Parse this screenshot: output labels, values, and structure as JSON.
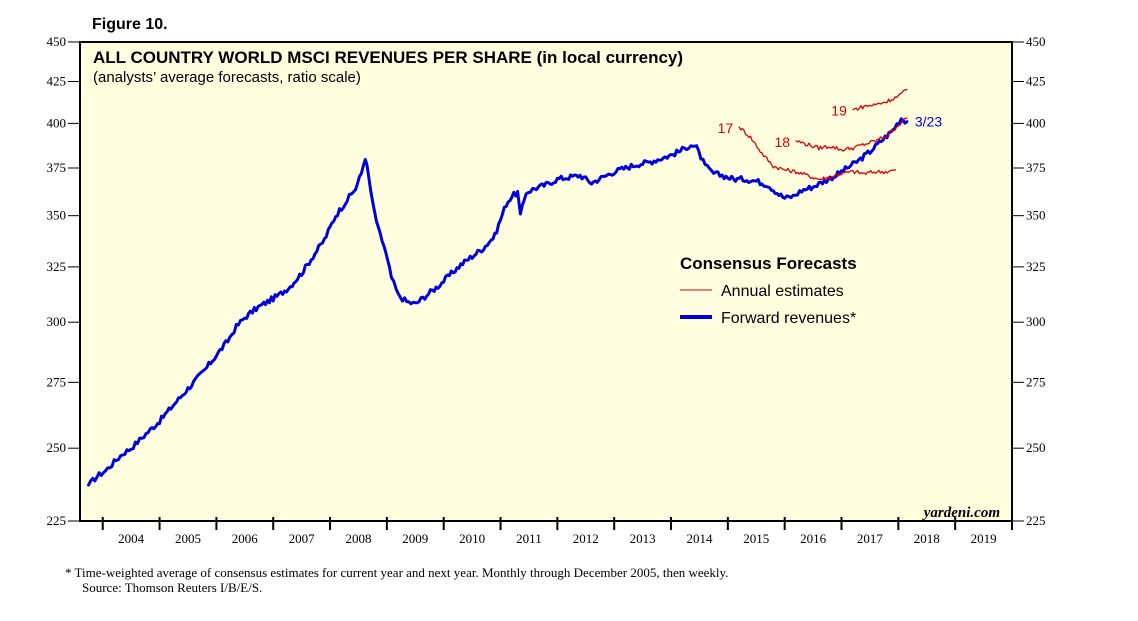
{
  "chart_data": {
    "type": "line",
    "figure_label": "Figure 10.",
    "title": "ALL COUNTRY WORLD MSCI REVENUES PER SHARE (in local currency)",
    "subtitle": "(analysts’ average forecasts, ratio scale)",
    "y_scale": "log",
    "ylim": [
      225,
      450
    ],
    "xlim": [
      2003.6,
      2020.0
    ],
    "y_ticks": [
      225,
      250,
      275,
      300,
      325,
      350,
      375,
      400,
      425,
      450
    ],
    "x_categories": [
      "2004",
      "2005",
      "2006",
      "2007",
      "2008",
      "2009",
      "2010",
      "2011",
      "2012",
      "2013",
      "2014",
      "2015",
      "2016",
      "2017",
      "2018",
      "2019"
    ],
    "legend": {
      "title": "Consensus Forecasts",
      "entries": [
        "Annual estimates",
        "Forward revenues*"
      ]
    },
    "series": [
      {
        "name": "Forward revenues*",
        "color": "#0000dd",
        "points": [
          [
            2003.75,
            237
          ],
          [
            2003.9,
            240
          ],
          [
            2004.05,
            242
          ],
          [
            2004.2,
            245
          ],
          [
            2004.35,
            248
          ],
          [
            2004.5,
            250
          ],
          [
            2004.65,
            253
          ],
          [
            2004.8,
            256
          ],
          [
            2005.0,
            260
          ],
          [
            2005.2,
            265
          ],
          [
            2005.4,
            270
          ],
          [
            2005.6,
            275
          ],
          [
            2005.8,
            280
          ],
          [
            2006.0,
            286
          ],
          [
            2006.2,
            292
          ],
          [
            2006.35,
            298
          ],
          [
            2006.5,
            302
          ],
          [
            2006.7,
            306
          ],
          [
            2006.9,
            309
          ],
          [
            2007.1,
            312
          ],
          [
            2007.3,
            316
          ],
          [
            2007.5,
            322
          ],
          [
            2007.7,
            330
          ],
          [
            2007.9,
            338
          ],
          [
            2008.1,
            350
          ],
          [
            2008.3,
            358
          ],
          [
            2008.45,
            364
          ],
          [
            2008.55,
            372
          ],
          [
            2008.62,
            381
          ],
          [
            2008.68,
            370
          ],
          [
            2008.75,
            356
          ],
          [
            2008.85,
            343
          ],
          [
            2008.95,
            335
          ],
          [
            2009.08,
            320
          ],
          [
            2009.2,
            312
          ],
          [
            2009.35,
            309
          ],
          [
            2009.5,
            308
          ],
          [
            2009.7,
            312
          ],
          [
            2009.9,
            316
          ],
          [
            2010.1,
            321
          ],
          [
            2010.3,
            326
          ],
          [
            2010.5,
            330
          ],
          [
            2010.7,
            334
          ],
          [
            2010.9,
            340
          ],
          [
            2011.0,
            348
          ],
          [
            2011.1,
            356
          ],
          [
            2011.2,
            360
          ],
          [
            2011.3,
            362
          ],
          [
            2011.35,
            350
          ],
          [
            2011.45,
            362
          ],
          [
            2011.6,
            364
          ],
          [
            2011.8,
            366
          ],
          [
            2012.0,
            369
          ],
          [
            2012.2,
            370
          ],
          [
            2012.4,
            371
          ],
          [
            2012.6,
            367
          ],
          [
            2012.8,
            370
          ],
          [
            2013.0,
            373
          ],
          [
            2013.2,
            375
          ],
          [
            2013.4,
            377
          ],
          [
            2013.6,
            378
          ],
          [
            2013.8,
            380
          ],
          [
            2014.0,
            382
          ],
          [
            2014.2,
            385
          ],
          [
            2014.35,
            388
          ],
          [
            2014.45,
            386
          ],
          [
            2014.6,
            376
          ],
          [
            2014.75,
            372
          ],
          [
            2014.9,
            371
          ],
          [
            2015.1,
            369
          ],
          [
            2015.3,
            369
          ],
          [
            2015.5,
            368
          ],
          [
            2015.7,
            366
          ],
          [
            2015.9,
            361
          ],
          [
            2016.0,
            359
          ],
          [
            2016.15,
            360
          ],
          [
            2016.3,
            363
          ],
          [
            2016.5,
            365
          ],
          [
            2016.7,
            368
          ],
          [
            2016.9,
            371
          ],
          [
            2017.1,
            375
          ],
          [
            2017.3,
            379
          ],
          [
            2017.5,
            384
          ],
          [
            2017.7,
            390
          ],
          [
            2017.9,
            396
          ],
          [
            2018.05,
            403
          ],
          [
            2018.15,
            401
          ]
        ]
      },
      {
        "name": "Annual estimates (2017)",
        "label": "17",
        "color": "#dd0000",
        "points": [
          [
            2015.2,
            398
          ],
          [
            2015.4,
            392
          ],
          [
            2015.6,
            383
          ],
          [
            2015.8,
            376
          ],
          [
            2016.0,
            374
          ],
          [
            2016.2,
            373
          ],
          [
            2016.4,
            371
          ],
          [
            2016.6,
            369
          ],
          [
            2016.8,
            370
          ],
          [
            2017.0,
            372
          ],
          [
            2017.2,
            373
          ],
          [
            2017.4,
            372
          ],
          [
            2017.6,
            373
          ],
          [
            2017.8,
            373
          ],
          [
            2017.95,
            374
          ]
        ]
      },
      {
        "name": "Annual estimates (2018)",
        "label": "18",
        "color": "#dd0000",
        "points": [
          [
            2016.2,
            390
          ],
          [
            2016.4,
            388
          ],
          [
            2016.6,
            386
          ],
          [
            2016.8,
            387
          ],
          [
            2017.0,
            385
          ],
          [
            2017.2,
            386
          ],
          [
            2017.4,
            388
          ],
          [
            2017.6,
            390
          ],
          [
            2017.8,
            393
          ],
          [
            2018.0,
            399
          ],
          [
            2018.15,
            403
          ]
        ]
      },
      {
        "name": "Annual estimates (2019)",
        "label": "19",
        "color": "#dd0000",
        "points": [
          [
            2017.2,
            408
          ],
          [
            2017.4,
            410
          ],
          [
            2017.6,
            411
          ],
          [
            2017.8,
            413
          ],
          [
            2018.0,
            416
          ],
          [
            2018.15,
            420
          ]
        ]
      }
    ],
    "end_label": "3/23",
    "watermark": "yardeni.com",
    "footnote": "*  Time-weighted average of consensus estimates for current year and next year. Monthly through December 2005, then weekly.",
    "source": "Source: Thomson Reuters I/B/E/S."
  }
}
